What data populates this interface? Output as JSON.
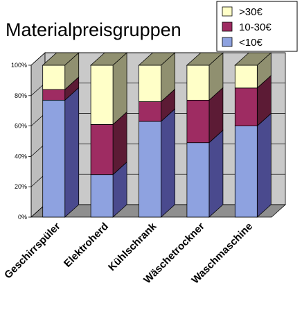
{
  "chart_data": {
    "type": "bar",
    "stacked": true,
    "three_d": true,
    "title": "Materialpreisgruppen",
    "categories": [
      "Geschirrspüler",
      "Elektroherd",
      "Kühlschrank",
      "Wäschetrockner",
      "Waschmaschine"
    ],
    "series": [
      {
        "name": "<10€",
        "values": [
          77,
          28,
          63,
          49,
          60
        ],
        "color": "#8ea2e0",
        "side_color": "#4a4a8e"
      },
      {
        "name": "10-30€",
        "values": [
          7,
          33,
          13,
          28,
          25
        ],
        "color": "#9e2c62",
        "side_color": "#5c1b35"
      },
      {
        "name": ">30€",
        "values": [
          16,
          39,
          24,
          23,
          15
        ],
        "color": "#ffffc8",
        "side_color": "#909070"
      }
    ],
    "ylim": [
      0,
      100
    ],
    "yticks": [
      "0%",
      "20%",
      "40%",
      "60%",
      "80%",
      "100%"
    ],
    "grid": true,
    "legend_position": "top-right",
    "xlabel": "",
    "ylabel": ""
  }
}
